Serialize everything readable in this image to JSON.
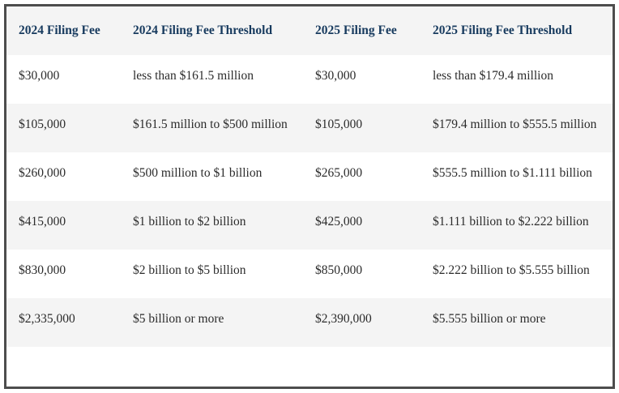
{
  "table": {
    "headers": [
      "2024 Filing Fee",
      "2024 Filing Fee Threshold",
      "2025 Filing Fee",
      "2025 Filing Fee Threshold"
    ],
    "rows": [
      [
        "$30,000",
        "less than $161.5 million",
        "$30,000",
        "less than $179.4 million"
      ],
      [
        "$105,000",
        "$161.5 million to $500 million",
        "$105,000",
        "$179.4 million to $555.5 million"
      ],
      [
        "$260,000",
        "$500 million to $1 billion",
        "$265,000",
        "$555.5 million to $1.111 billion"
      ],
      [
        "$415,000",
        "$1 billion to $2 billion",
        "$425,000",
        "$1.111 billion to $2.222 billion"
      ],
      [
        "$830,000",
        "$2 billion to $5 billion",
        "$850,000",
        "$2.222 billion to $5.555 billion"
      ],
      [
        "$2,335,000",
        "$5 billion or more",
        "$2,390,000",
        "$5.555 billion or more"
      ]
    ]
  }
}
